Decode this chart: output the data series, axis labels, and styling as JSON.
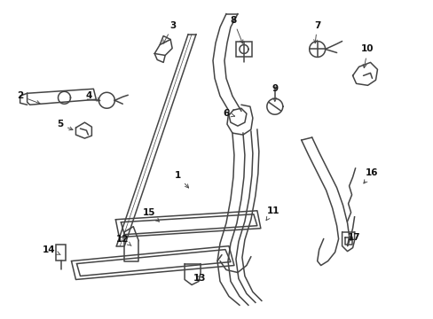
{
  "bg_color": "#ffffff",
  "line_color": "#444444",
  "label_color": "#111111",
  "fig_width": 4.89,
  "fig_height": 3.6,
  "dpi": 100,
  "labels": [
    [
      "1",
      200,
      198,
      215,
      215
    ],
    [
      "2",
      22,
      108,
      48,
      118
    ],
    [
      "3",
      195,
      28,
      182,
      52
    ],
    [
      "4",
      100,
      108,
      116,
      115
    ],
    [
      "5",
      67,
      140,
      85,
      148
    ],
    [
      "6",
      255,
      128,
      268,
      132
    ],
    [
      "7",
      358,
      28,
      355,
      52
    ],
    [
      "8",
      263,
      22,
      275,
      52
    ],
    [
      "9",
      310,
      100,
      310,
      118
    ],
    [
      "10",
      415,
      55,
      410,
      80
    ],
    [
      "11",
      308,
      238,
      298,
      252
    ],
    [
      "12",
      138,
      270,
      148,
      278
    ],
    [
      "13",
      225,
      315,
      218,
      310
    ],
    [
      "14",
      55,
      282,
      68,
      288
    ],
    [
      "15",
      168,
      240,
      182,
      253
    ],
    [
      "16",
      420,
      195,
      408,
      210
    ],
    [
      "17",
      400,
      268,
      393,
      274
    ]
  ]
}
